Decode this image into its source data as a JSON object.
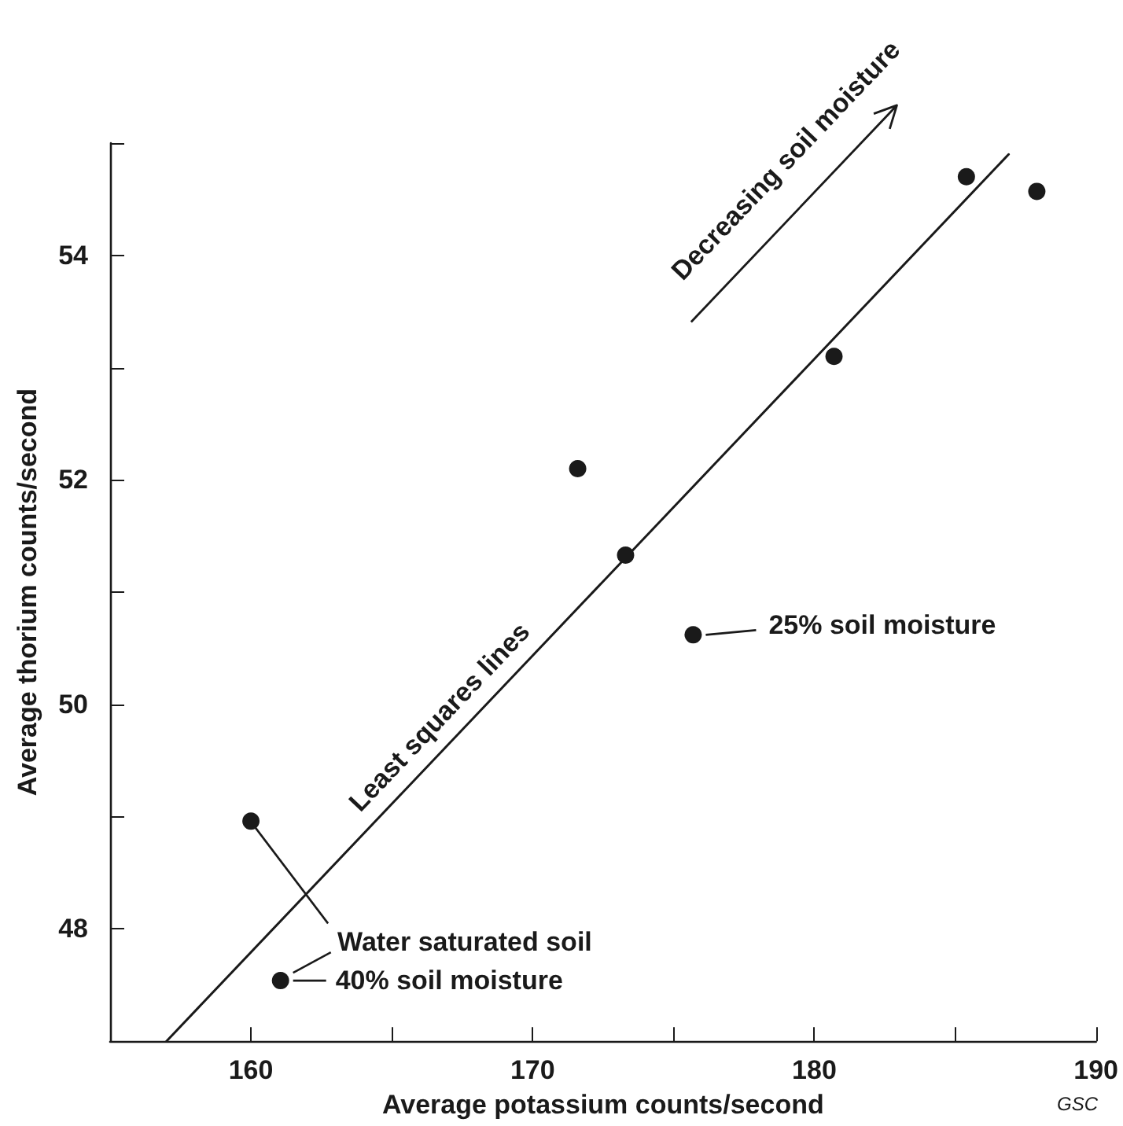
{
  "chart_data": {
    "type": "scatter",
    "xlabel": "Average potassium counts/second",
    "ylabel": "Average thorium counts/second",
    "series": [
      {
        "type": "scatter",
        "color": "#1a1a1a",
        "marker": "circle",
        "x": [
          160,
          161.05,
          171.6,
          173.3,
          175.7,
          180.7,
          185.4,
          187.9
        ],
        "values": [
          48.96,
          47.54,
          52.1,
          51.33,
          50.62,
          53.1,
          54.7,
          54.57
        ]
      },
      {
        "type": "line",
        "color": "#1a1a1a",
        "marker": "none",
        "line_style": "solid",
        "x": [
          157,
          186.9
        ],
        "values": [
          47,
          54.9
        ]
      }
    ],
    "xlim": [
      155,
      190
    ],
    "xticks": [
      160,
      {
        "value": 165,
        "label": null
      },
      170,
      {
        "value": 175,
        "label": null
      },
      180,
      {
        "value": 185,
        "label": null
      },
      190
    ],
    "ylim": [
      47,
      55
    ],
    "yticks": [
      48,
      {
        "value": 49,
        "label": null
      },
      50,
      {
        "value": 51,
        "label": null
      },
      52,
      {
        "value": 53,
        "label": null
      },
      54,
      {
        "value": 55,
        "label": null
      }
    ],
    "grid": false,
    "annotations": [
      "Decreasing soil moisture",
      "Least squares lines",
      {
        "text": "25% soil moisture",
        "x": 175.7,
        "y": 50.62
      },
      {
        "text": "Water saturated soil",
        "x": 160,
        "y": 48.96
      },
      {
        "text": "40% soil moisture",
        "x": 161.05,
        "y": 47.54
      },
      "GSC"
    ]
  }
}
